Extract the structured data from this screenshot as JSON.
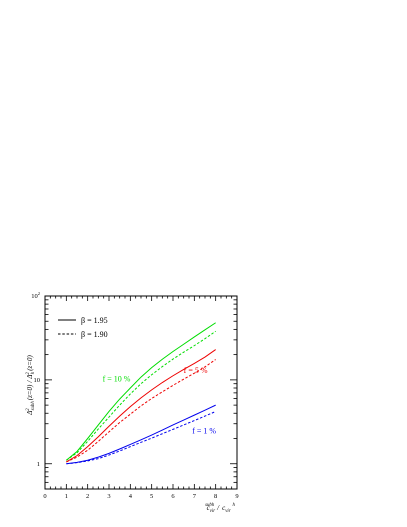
{
  "chart_data": {
    "type": "line",
    "title": "",
    "xlabel": {
      "c1": "c",
      "sub1": "vir",
      "sup1": "subh",
      "sep": "/",
      "c2": "c",
      "sub2": "vir",
      "sup2": "h"
    },
    "ylabel": {
      "delta1": "Δ",
      "sup1": "2",
      "sub1": "subh",
      "arg1": "(z=0)",
      "sep": "/",
      "delta2": "Δ",
      "sup2": "2",
      "sub2": "h",
      "arg2": "(z=0)"
    },
    "xlim": [
      0,
      9
    ],
    "ylim": [
      0.5,
      100
    ],
    "yscale": "log",
    "x_ticks": [
      "0",
      "1",
      "2",
      "3",
      "4",
      "5",
      "6",
      "7",
      "8",
      "9"
    ],
    "y_ticks": [
      {
        "value": 1,
        "label": "1"
      },
      {
        "value": 10,
        "label": "10"
      },
      {
        "value": 100,
        "label": "10",
        "sup": "2"
      }
    ],
    "legend": {
      "position": "top-left",
      "entries": [
        {
          "label": "β = 1.95",
          "dash": "solid"
        },
        {
          "label": "β = 1.90",
          "dash": "dashed"
        }
      ]
    },
    "series": [
      {
        "group": "f = 10 %",
        "color": "#00dd00",
        "dash": "solid",
        "x": [
          1,
          1.5,
          2,
          2.5,
          3,
          3.5,
          4,
          4.5,
          5,
          5.5,
          6,
          6.5,
          7,
          7.5,
          8
        ],
        "y": [
          1.1,
          1.4,
          2.0,
          2.9,
          4.2,
          5.9,
          8.0,
          10.8,
          14.0,
          17.6,
          21.8,
          26.6,
          32.5,
          39.5,
          48.0
        ]
      },
      {
        "group": "f = 10 %",
        "color": "#00dd00",
        "dash": "dashed",
        "x": [
          1,
          1.5,
          2,
          2.5,
          3,
          3.5,
          4,
          4.5,
          5,
          5.5,
          6,
          6.5,
          7,
          7.5,
          8
        ],
        "y": [
          1.1,
          1.35,
          1.85,
          2.6,
          3.6,
          5.0,
          6.8,
          9.0,
          11.5,
          14.4,
          17.7,
          21.4,
          25.6,
          31.0,
          38.0
        ]
      },
      {
        "group": "f = 5 %",
        "color": "#ee0000",
        "dash": "solid",
        "x": [
          1,
          1.5,
          2,
          2.5,
          3,
          3.5,
          4,
          4.5,
          5,
          5.5,
          6,
          6.5,
          7,
          7.5,
          8
        ],
        "y": [
          1.05,
          1.25,
          1.6,
          2.1,
          2.8,
          3.7,
          4.8,
          6.1,
          7.6,
          9.3,
          11.2,
          13.3,
          15.7,
          18.7,
          23.0
        ]
      },
      {
        "group": "f = 5 %",
        "color": "#ee0000",
        "dash": "dashed",
        "x": [
          1,
          1.5,
          2,
          2.5,
          3,
          3.5,
          4,
          4.5,
          5,
          5.5,
          6,
          6.5,
          7,
          7.5,
          8
        ],
        "y": [
          1.05,
          1.2,
          1.45,
          1.85,
          2.4,
          3.1,
          3.9,
          4.9,
          6.0,
          7.2,
          8.6,
          10.2,
          12.0,
          14.3,
          17.5
        ]
      },
      {
        "group": "f = 1 %",
        "color": "#0000ee",
        "dash": "solid",
        "x": [
          1,
          1.5,
          2,
          2.5,
          3,
          3.5,
          4,
          4.5,
          5,
          5.5,
          6,
          6.5,
          7,
          7.5,
          8
        ],
        "y": [
          1.0,
          1.04,
          1.1,
          1.2,
          1.33,
          1.5,
          1.7,
          1.93,
          2.2,
          2.52,
          2.9,
          3.32,
          3.8,
          4.35,
          5.0
        ]
      },
      {
        "group": "f = 1 %",
        "color": "#0000ee",
        "dash": "dashed",
        "x": [
          1,
          1.5,
          2,
          2.5,
          3,
          3.5,
          4,
          4.5,
          5,
          5.5,
          6,
          6.5,
          7,
          7.5,
          8
        ],
        "y": [
          1.0,
          1.03,
          1.08,
          1.15,
          1.27,
          1.42,
          1.6,
          1.8,
          2.02,
          2.28,
          2.57,
          2.9,
          3.27,
          3.7,
          4.2
        ]
      }
    ],
    "annotations": [
      {
        "text": "f = 10 %",
        "color": "#00dd00",
        "x": 2.7,
        "y": 9.5
      },
      {
        "text": "f = 5 %",
        "color": "#ee0000",
        "x": 6.5,
        "y": 12.0
      },
      {
        "text": "f = 1 %",
        "color": "#0000ee",
        "x": 6.9,
        "y": 2.3
      }
    ]
  }
}
